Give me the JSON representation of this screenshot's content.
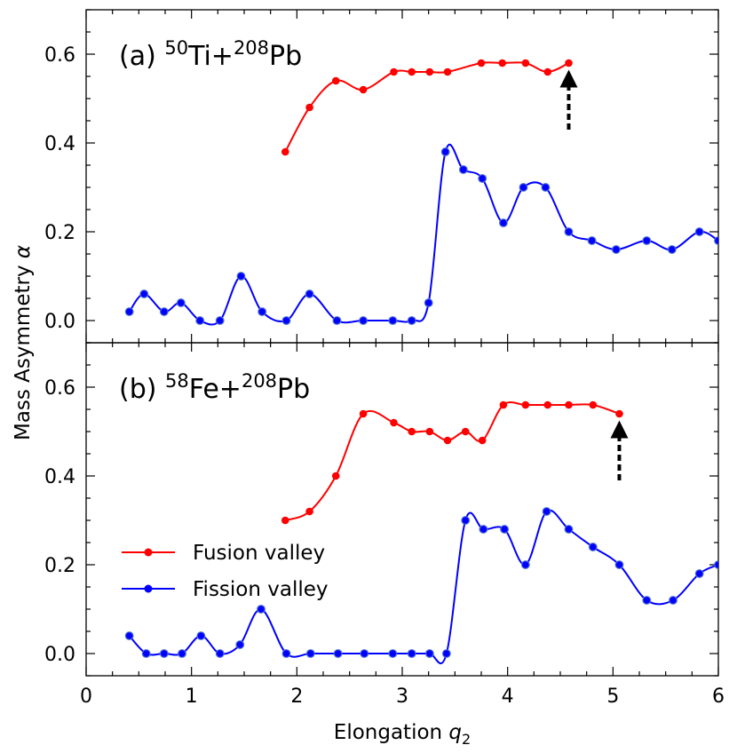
{
  "colors": {
    "fusion": "#ff0000",
    "fission": "#0000ff",
    "marker_edge_fission": "#4a6fd0",
    "arrow": "#000000"
  },
  "labels": {
    "xlabel_main": "Elongation ",
    "xlabel_var": "q",
    "xlabel_sub": "2",
    "ylabel_main": "Mass Asymmetry ",
    "ylabel_var": "α"
  },
  "legend": {
    "placement": "lower-left of panel (b)",
    "items": [
      {
        "label": "Fusion valley",
        "color_key": "fusion"
      },
      {
        "label": "Fission valley",
        "color_key": "fission"
      }
    ]
  },
  "x_ticks": [
    "0",
    "1",
    "2",
    "3",
    "4",
    "5",
    "6"
  ],
  "chart_data": [
    {
      "type": "line",
      "panel_tag": "(a) ",
      "proj_mass": "50",
      "proj_sym": "Ti+",
      "targ_mass": "208",
      "targ_sym": "Pb",
      "xlim": [
        0,
        6
      ],
      "ylim": [
        -0.05,
        0.7
      ],
      "y_ticks": [
        "0.0",
        "0.2",
        "0.4",
        "0.6"
      ],
      "y_tick_values": [
        0,
        0.2,
        0.4,
        0.6
      ],
      "x_tick_values": [
        0,
        1,
        2,
        3,
        4,
        5,
        6
      ],
      "arrow": {
        "x": 4.58,
        "y_from": 0.43,
        "y_to": 0.565
      },
      "series": [
        {
          "name": "Fusion valley",
          "color_key": "fusion",
          "x": [
            1.89,
            2.12,
            2.37,
            2.63,
            2.92,
            3.09,
            3.26,
            3.43,
            3.75,
            3.95,
            4.17,
            4.38,
            4.58
          ],
          "y": [
            0.38,
            0.48,
            0.54,
            0.52,
            0.56,
            0.56,
            0.56,
            0.56,
            0.58,
            0.58,
            0.58,
            0.56,
            0.58
          ]
        },
        {
          "name": "Fission valley",
          "color_key": "fission",
          "x": [
            0.41,
            0.55,
            0.74,
            0.9,
            1.08,
            1.27,
            1.47,
            1.67,
            1.9,
            2.12,
            2.38,
            2.63,
            2.91,
            3.09,
            3.25,
            3.41,
            3.58,
            3.76,
            3.96,
            4.15,
            4.36,
            4.58,
            4.8,
            5.03,
            5.32,
            5.56,
            5.82,
            6.0
          ],
          "y": [
            0.02,
            0.06,
            0.02,
            0.04,
            0.0,
            0.0,
            0.1,
            0.02,
            0.0,
            0.06,
            0.0,
            0.0,
            0.0,
            0.0,
            0.04,
            0.38,
            0.34,
            0.32,
            0.22,
            0.3,
            0.3,
            0.2,
            0.18,
            0.16,
            0.18,
            0.16,
            0.2,
            0.18
          ]
        }
      ]
    },
    {
      "type": "line",
      "panel_tag": "(b) ",
      "proj_mass": "58",
      "proj_sym": "Fe+",
      "targ_mass": "208",
      "targ_sym": "Pb",
      "xlim": [
        0,
        6
      ],
      "ylim": [
        -0.05,
        0.7
      ],
      "y_ticks": [
        "0.0",
        "0.2",
        "0.4",
        "0.6"
      ],
      "y_tick_values": [
        0,
        0.2,
        0.4,
        0.6
      ],
      "x_tick_values": [
        0,
        1,
        2,
        3,
        4,
        5,
        6
      ],
      "arrow": {
        "x": 5.06,
        "y_from": 0.39,
        "y_to": 0.525
      },
      "series": [
        {
          "name": "Fusion valley",
          "color_key": "fusion",
          "x": [
            1.89,
            2.12,
            2.37,
            2.63,
            2.92,
            3.09,
            3.26,
            3.43,
            3.6,
            3.76,
            3.96,
            4.17,
            4.38,
            4.58,
            4.81,
            5.06
          ],
          "y": [
            0.3,
            0.32,
            0.4,
            0.54,
            0.52,
            0.5,
            0.5,
            0.48,
            0.5,
            0.48,
            0.56,
            0.56,
            0.56,
            0.56,
            0.56,
            0.54
          ]
        },
        {
          "name": "Fission valley",
          "color_key": "fission",
          "x": [
            0.41,
            0.57,
            0.74,
            0.91,
            1.09,
            1.27,
            1.46,
            1.66,
            1.9,
            2.13,
            2.39,
            2.64,
            2.91,
            3.09,
            3.26,
            3.42,
            3.6,
            3.77,
            3.97,
            4.17,
            4.37,
            4.58,
            4.81,
            5.06,
            5.32,
            5.57,
            5.82,
            6.0
          ],
          "y": [
            0.04,
            0.0,
            0.0,
            0.0,
            0.04,
            0.0,
            0.02,
            0.1,
            0.0,
            0.0,
            0.0,
            0.0,
            0.0,
            0.0,
            0.0,
            0.0,
            0.3,
            0.28,
            0.28,
            0.2,
            0.32,
            0.28,
            0.24,
            0.2,
            0.12,
            0.12,
            0.18,
            0.2
          ]
        }
      ]
    }
  ]
}
